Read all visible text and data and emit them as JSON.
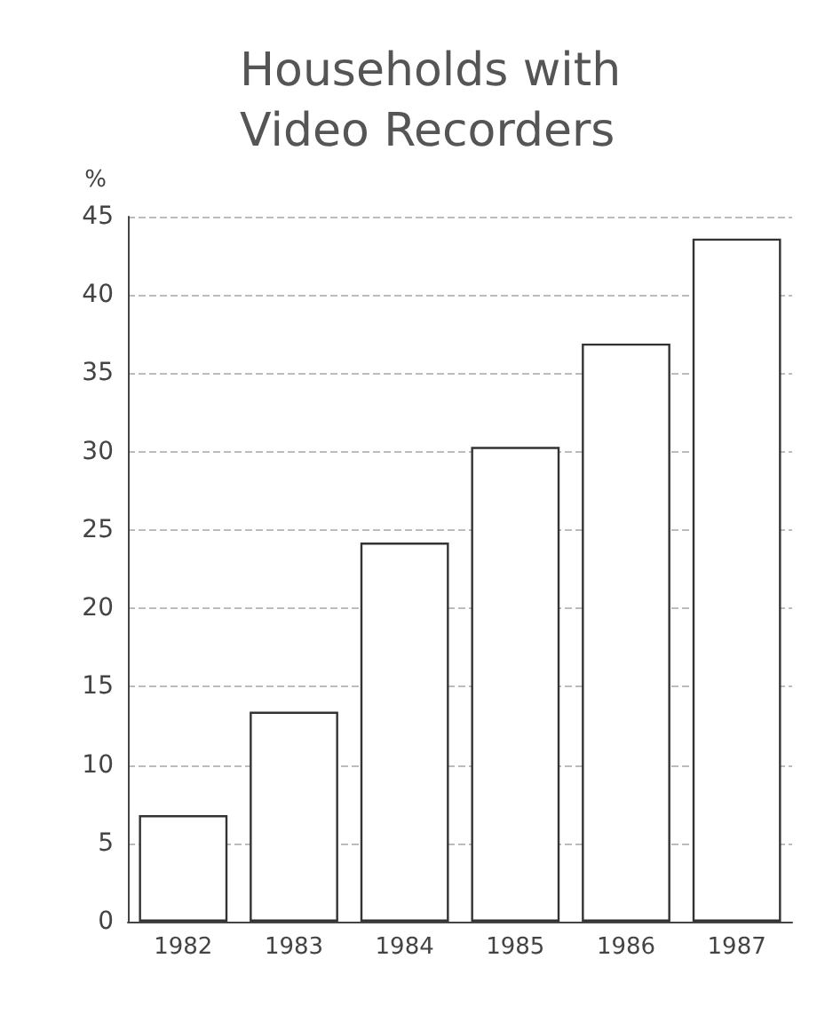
{
  "chart_data": {
    "type": "bar",
    "title": "Households with Video Recorders",
    "ylabel": "%",
    "categories": [
      "1982",
      "1983",
      "1984",
      "1985",
      "1986",
      "1987"
    ],
    "values": [
      6.8,
      13.4,
      24.2,
      30.3,
      36.9,
      43.6
    ],
    "color": "#ffffff",
    "ylim": [
      0,
      45
    ],
    "yticks": [
      0,
      5,
      10,
      15,
      20,
      25,
      30,
      35,
      40,
      45
    ],
    "grid": "y"
  }
}
